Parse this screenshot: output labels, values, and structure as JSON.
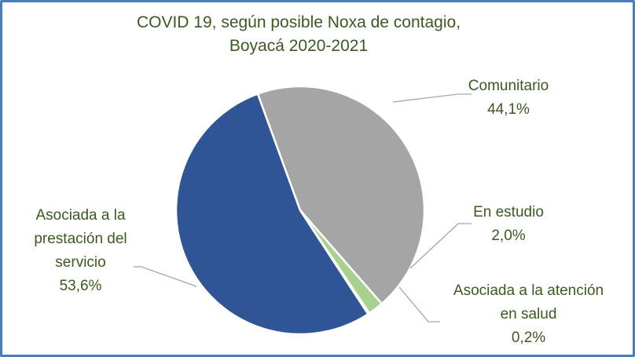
{
  "chart_data": {
    "type": "pie",
    "title": "COVID 19, según posible Noxa de contagio, Boyacá 2020-2021",
    "categories": [
      "Comunitario",
      "En estudio",
      "Asociada a la atención en salud",
      "Asociada a la prestación del servicio"
    ],
    "values": [
      44.1,
      2.0,
      0.2,
      53.6
    ],
    "value_labels": [
      "44,1%",
      "2,0%",
      "0,2%",
      "53,6%"
    ],
    "colors": [
      "#a5a5a5",
      "#a9d18e",
      "#4472c4",
      "#2f5597"
    ]
  }
}
